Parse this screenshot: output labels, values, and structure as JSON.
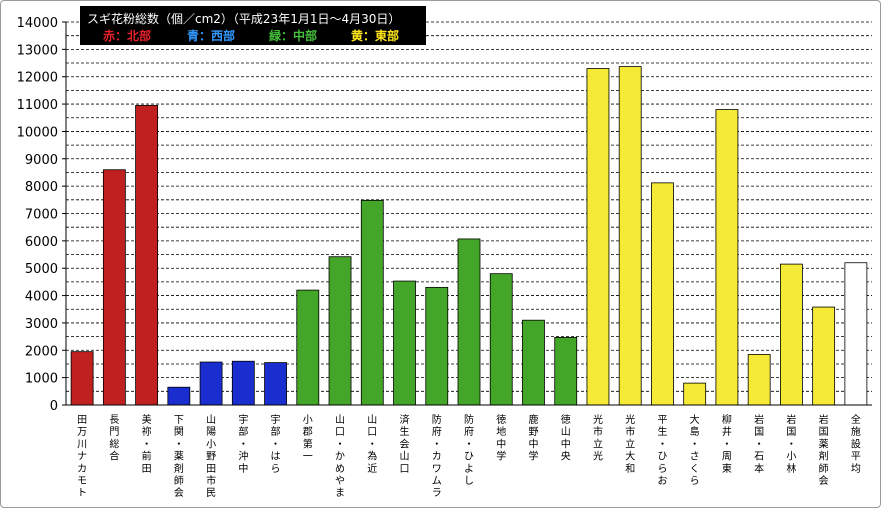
{
  "chart_data": {
    "type": "bar",
    "title": "スギ花粉総数（個／cm2）（平成23年1月1日〜4月30日）",
    "legend": [
      {
        "label": "赤：北部",
        "color": "#e8202a"
      },
      {
        "label": "青：西部",
        "color": "#3399ff"
      },
      {
        "label": "緑：中部",
        "color": "#44c03a"
      },
      {
        "label": "黄：東部",
        "color": "#ffe61a"
      }
    ],
    "ylim": [
      0,
      14000
    ],
    "yticks": [
      "0",
      "1000",
      "2000",
      "3000",
      "4000",
      "5000",
      "6000",
      "7000",
      "8000",
      "9000",
      "10000",
      "11000",
      "12000",
      "13000",
      "14000"
    ],
    "grid": "horizontal dashed",
    "categories": [
      "田万川ナカモト",
      "長門総合",
      "美祢・前田",
      "下関・薬剤師会",
      "山陽小野田市民",
      "宇部・沖中",
      "宇部・はら",
      "小郡第一",
      "山口・かめやま",
      "山口・為近",
      "済生会山口",
      "防府・カワムラ",
      "防府・ひよし",
      "徳地中学",
      "鹿野中学",
      "徳山中央",
      "光市立光",
      "光市立大和",
      "平生・ひらお",
      "大島・さくら",
      "柳井・周東",
      "岩国・石本",
      "岩国・小林",
      "岩国薬剤師会",
      "全施設平均"
    ],
    "values": [
      1950,
      8600,
      10950,
      650,
      1570,
      1600,
      1550,
      4200,
      5420,
      7480,
      4530,
      4300,
      6070,
      4800,
      3100,
      2470,
      12300,
      12370,
      8120,
      800,
      10800,
      1850,
      5150,
      3580,
      5200
    ],
    "regions": [
      "北部",
      "北部",
      "北部",
      "西部",
      "西部",
      "西部",
      "西部",
      "中部",
      "中部",
      "中部",
      "中部",
      "中部",
      "中部",
      "中部",
      "中部",
      "中部",
      "東部",
      "東部",
      "東部",
      "東部",
      "東部",
      "東部",
      "東部",
      "東部",
      "平均"
    ],
    "bar_colors": {
      "北部": "#c02020",
      "西部": "#1a2ecf",
      "中部": "#44a628",
      "東部": "#f5ea36",
      "平均": "#ffffff"
    }
  }
}
